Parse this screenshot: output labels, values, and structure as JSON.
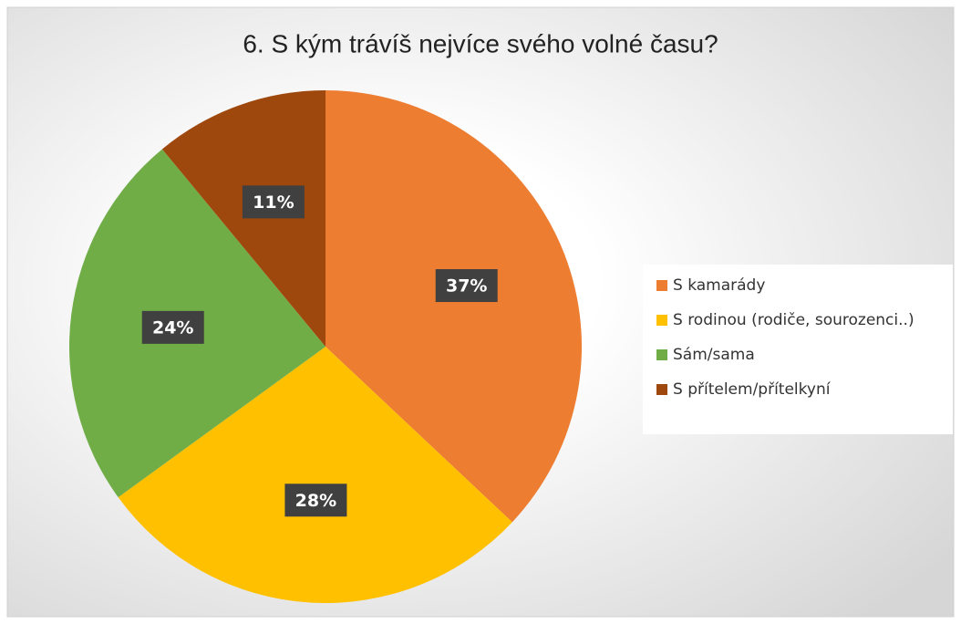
{
  "chart_data": {
    "type": "pie",
    "title": "6. S kým trávíš nejvíce svého volné času?",
    "categories": [
      "S kamarády",
      "S rodinou (rodiče, sourozenci..)",
      "Sám/sama",
      "S přítelem/přítelkyní"
    ],
    "values": [
      37,
      28,
      24,
      11
    ],
    "value_labels": [
      "37%",
      "28%",
      "24%",
      "11%"
    ],
    "colors": [
      "#ed7d31",
      "#ffc000",
      "#70ad47",
      "#9e480e"
    ],
    "legend": "right"
  }
}
